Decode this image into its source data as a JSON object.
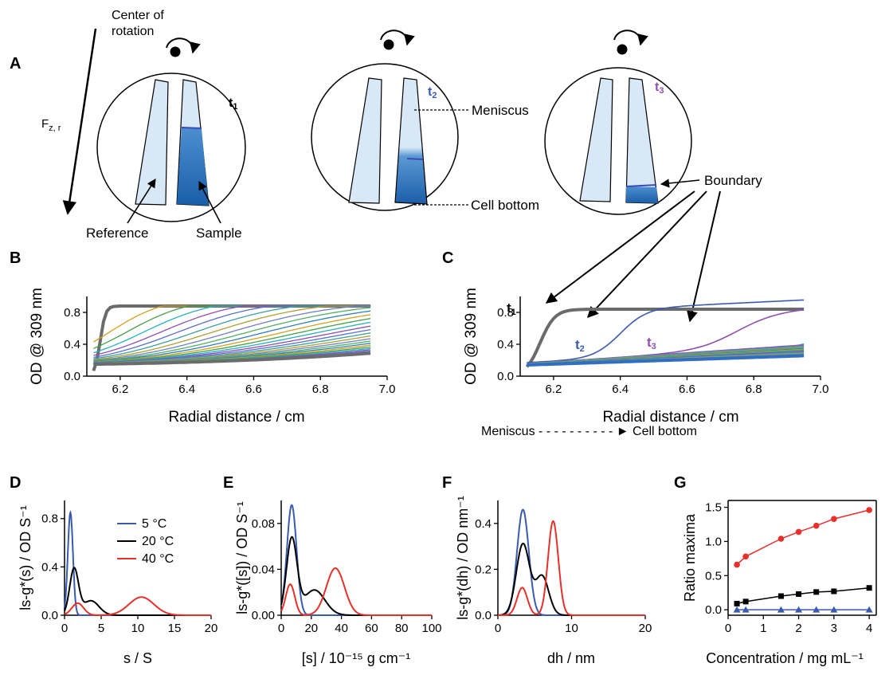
{
  "panelA": {
    "letter": "A",
    "center_of_rotation": [
      "Center of",
      "rotation"
    ],
    "force_label": "F",
    "force_sub": "z, r",
    "times": [
      {
        "t": "t",
        "n": "1",
        "color": "#000000"
      },
      {
        "t": "t",
        "n": "2",
        "color": "#3a5ab0"
      },
      {
        "t": "t",
        "n": "3",
        "color": "#8e4fb0"
      }
    ],
    "label_reference": "Reference",
    "label_sample": "Sample",
    "label_meniscus": "Meniscus",
    "label_cell_bottom": "Cell bottom",
    "label_boundary": "Boundary",
    "arrow_label": "Meniscus - - - - - - - - - - ► Cell bottom"
  },
  "colors": {
    "blue": "#3a5ab0",
    "black": "#000000",
    "red": "#e8302a",
    "grey": "#6b6b6b",
    "purple": "#8e4fb0"
  },
  "chart_data": [
    {
      "id": "B",
      "type": "line",
      "letter": "B",
      "ylabel": "OD @ 309 nm",
      "xlabel": "Radial distance / cm",
      "xlim": [
        6.1,
        7.0
      ],
      "ylim": [
        0,
        1.0
      ],
      "xticks": [
        "6.2",
        "6.4",
        "6.6",
        "6.8",
        "7.0"
      ],
      "yticks": [
        "0.0",
        "0.4",
        "0.8"
      ],
      "series_note": "approx. 30 scans, first scan near 0.9 plateau, last scan rising from 0.15 to 0.5"
    },
    {
      "id": "C",
      "type": "line",
      "letter": "C",
      "ylabel": "OD @ 309 nm",
      "xlabel": "Radial distance / cm",
      "xlim": [
        6.1,
        7.0
      ],
      "ylim": [
        0,
        1.0
      ],
      "xticks": [
        "6.2",
        "6.4",
        "6.6",
        "6.8",
        "7.0"
      ],
      "yticks": [
        "0.0",
        "0.4",
        "0.8"
      ],
      "annotations": [
        "t1",
        "t2",
        "t3"
      ]
    },
    {
      "id": "D",
      "type": "line",
      "letter": "D",
      "ylabel": "ls-g*(s) / OD S⁻¹",
      "xlabel": "s / S",
      "xlim": [
        0,
        20
      ],
      "ylim": [
        0,
        0.95
      ],
      "xticks": [
        "0",
        "5",
        "10",
        "15",
        "20"
      ],
      "yticks": [
        "0.0",
        "0.4",
        "0.8"
      ],
      "legend": [
        "5 °C",
        "20 °C",
        "40 °C"
      ],
      "series": [
        {
          "name": "5 °C",
          "peaks": [
            {
              "x": 0.8,
              "h": 0.85,
              "w": 0.35
            }
          ]
        },
        {
          "name": "20 °C",
          "peaks": [
            {
              "x": 1.3,
              "h": 0.38,
              "w": 0.6
            },
            {
              "x": 3.6,
              "h": 0.12,
              "w": 1.1
            }
          ]
        },
        {
          "name": "40 °C",
          "peaks": [
            {
              "x": 1.8,
              "h": 0.1,
              "w": 0.8
            },
            {
              "x": 10.5,
              "h": 0.15,
              "w": 1.7
            }
          ]
        }
      ]
    },
    {
      "id": "E",
      "type": "line",
      "letter": "E",
      "ylabel": "ls-g*([s]) / OD S⁻¹",
      "xlabel": "[s] / 10⁻¹⁵ g cm⁻¹",
      "xlim": [
        0,
        100
      ],
      "ylim": [
        0,
        0.1
      ],
      "xticks": [
        "0",
        "20",
        "40",
        "60",
        "80",
        "100"
      ],
      "yticks": [
        "0.00",
        "0.04",
        "0.08"
      ],
      "series": [
        {
          "name": "5 °C",
          "peaks": [
            {
              "x": 7,
              "h": 0.096,
              "w": 3.2
            }
          ]
        },
        {
          "name": "20 °C",
          "peaks": [
            {
              "x": 7,
              "h": 0.066,
              "w": 3.5
            },
            {
              "x": 22,
              "h": 0.022,
              "w": 7
            }
          ]
        },
        {
          "name": "40 °C",
          "peaks": [
            {
              "x": 6,
              "h": 0.027,
              "w": 3
            },
            {
              "x": 36,
              "h": 0.041,
              "w": 6
            }
          ]
        }
      ]
    },
    {
      "id": "F",
      "type": "line",
      "letter": "F",
      "ylabel": "ls-g*(dh) / OD nm⁻¹",
      "xlabel": "dh / nm",
      "xlim": [
        0,
        20
      ],
      "ylim": [
        0,
        0.5
      ],
      "xticks": [
        "0",
        "10",
        "20"
      ],
      "yticks": [
        "0.0",
        "0.2",
        "0.4"
      ],
      "series": [
        {
          "name": "5 °C",
          "peaks": [
            {
              "x": 3.4,
              "h": 0.46,
              "w": 0.8
            }
          ]
        },
        {
          "name": "20 °C",
          "peaks": [
            {
              "x": 3.4,
              "h": 0.31,
              "w": 0.9
            },
            {
              "x": 6,
              "h": 0.17,
              "w": 0.9
            }
          ]
        },
        {
          "name": "40 °C",
          "peaks": [
            {
              "x": 3.3,
              "h": 0.12,
              "w": 0.7
            },
            {
              "x": 7.5,
              "h": 0.41,
              "w": 0.7
            }
          ]
        }
      ]
    },
    {
      "id": "G",
      "type": "scatter",
      "letter": "G",
      "ylabel": "Ratio maxima",
      "xlabel": "Concentration / mg mL⁻¹",
      "xlim": [
        0,
        4.2
      ],
      "ylim": [
        -0.08,
        1.6
      ],
      "xticks": [
        "0",
        "1",
        "2",
        "3",
        "4"
      ],
      "yticks": [
        "0.0",
        "0.5",
        "1.0",
        "1.5"
      ],
      "x": [
        0.25,
        0.5,
        1.5,
        2.0,
        2.5,
        3.0,
        4.0
      ],
      "series": [
        {
          "name": "40 °C",
          "values": [
            0.66,
            0.78,
            1.04,
            1.14,
            1.23,
            1.33,
            1.46
          ]
        },
        {
          "name": "20 °C",
          "values": [
            0.09,
            0.12,
            0.2,
            0.23,
            0.26,
            0.27,
            0.32
          ]
        },
        {
          "name": "5 °C",
          "values": [
            0.0,
            0.0,
            0.0,
            0.0,
            0.0,
            0.0,
            0.0
          ]
        }
      ]
    }
  ]
}
